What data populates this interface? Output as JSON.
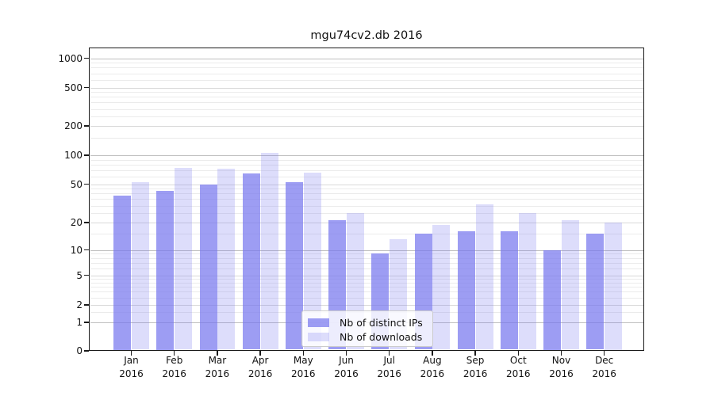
{
  "chart_data": {
    "type": "bar",
    "title": "mgu74cv2.db 2016",
    "categories": [
      "Jan",
      "Feb",
      "Mar",
      "Apr",
      "May",
      "Jun",
      "Jul",
      "Aug",
      "Sep",
      "Oct",
      "Nov",
      "Dec"
    ],
    "category_year": "2016",
    "series": [
      {
        "name": "Nb of distinct IPs",
        "values": [
          38,
          43,
          50,
          65,
          52,
          21,
          9,
          15,
          16,
          16,
          10,
          15
        ],
        "color": "rgba(119,119,238,0.72)"
      },
      {
        "name": "Nb of downloads",
        "values": [
          52,
          74,
          72,
          105,
          66,
          25,
          13,
          19,
          31,
          25,
          21,
          20
        ],
        "color": "rgba(119,119,238,0.25)"
      }
    ],
    "yscale": "symlog",
    "y_ticks": [
      0,
      1,
      2,
      5,
      10,
      20,
      50,
      100,
      200,
      500,
      1000
    ],
    "ylim": [
      0,
      1300
    ],
    "grid": true,
    "legend_position": "lower center"
  },
  "colors": {
    "bar_base": "#7777ee",
    "grid_minor": "#ebebeb",
    "grid_major": "#d8d8d8",
    "grid_decade": "#bfbfbf",
    "axis": "#1a1a1a",
    "background": "#ffffff"
  }
}
